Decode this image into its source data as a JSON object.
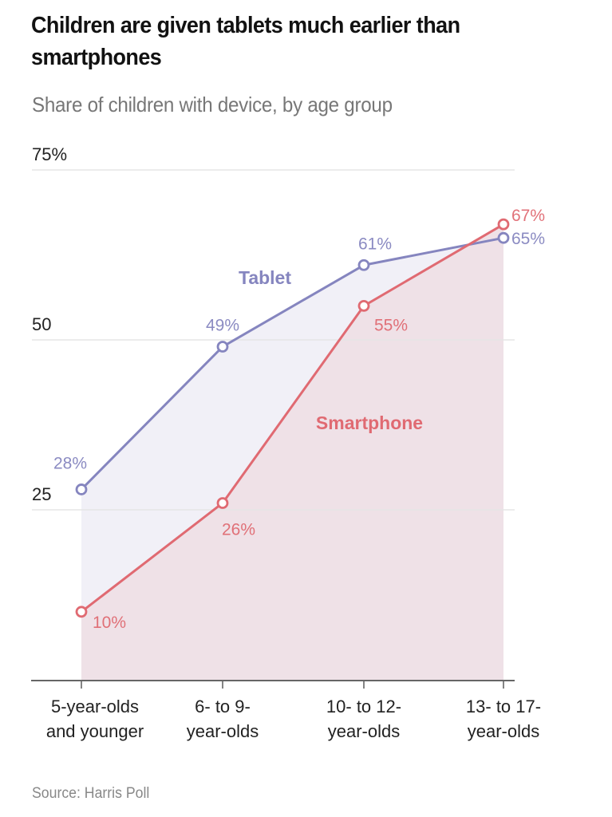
{
  "header": {
    "title": "Children are given tablets much earlier than smartphones",
    "subtitle": "Share of children with device, by age group"
  },
  "footer": {
    "source": "Source: Harris Poll"
  },
  "colors": {
    "tablet": "#8585bf",
    "tablet_fill": "#f1f0f7",
    "smartphone": "#e06a72",
    "smartphone_fill": "#efe1e7",
    "grid": "#e6e6e6",
    "axis": "#666666"
  },
  "chart_data": {
    "type": "line",
    "title": "Children are given tablets much earlier than smartphones",
    "subtitle": "Share of children with device, by age group",
    "xlabel": "",
    "ylabel": "",
    "categories": [
      [
        "5-year-olds",
        "and younger"
      ],
      [
        "6- to 9-",
        "year-olds"
      ],
      [
        "10- to 12-",
        "year-olds"
      ],
      [
        "13- to 17-",
        "year-olds"
      ]
    ],
    "ylim": [
      0,
      75
    ],
    "yticks": [
      {
        "value": 75,
        "label": "75%"
      },
      {
        "value": 50,
        "label": "50"
      },
      {
        "value": 25,
        "label": "25"
      }
    ],
    "grid": true,
    "series": [
      {
        "name": "Tablet",
        "values": [
          28,
          49,
          61,
          65
        ],
        "labels": [
          "28%",
          "49%",
          "61%",
          "65%"
        ]
      },
      {
        "name": "Smartphone",
        "values": [
          10,
          26,
          55,
          67
        ],
        "labels": [
          "10%",
          "26%",
          "55%",
          "67%"
        ]
      }
    ],
    "legend": "inline",
    "source": "Source: Harris Poll"
  }
}
